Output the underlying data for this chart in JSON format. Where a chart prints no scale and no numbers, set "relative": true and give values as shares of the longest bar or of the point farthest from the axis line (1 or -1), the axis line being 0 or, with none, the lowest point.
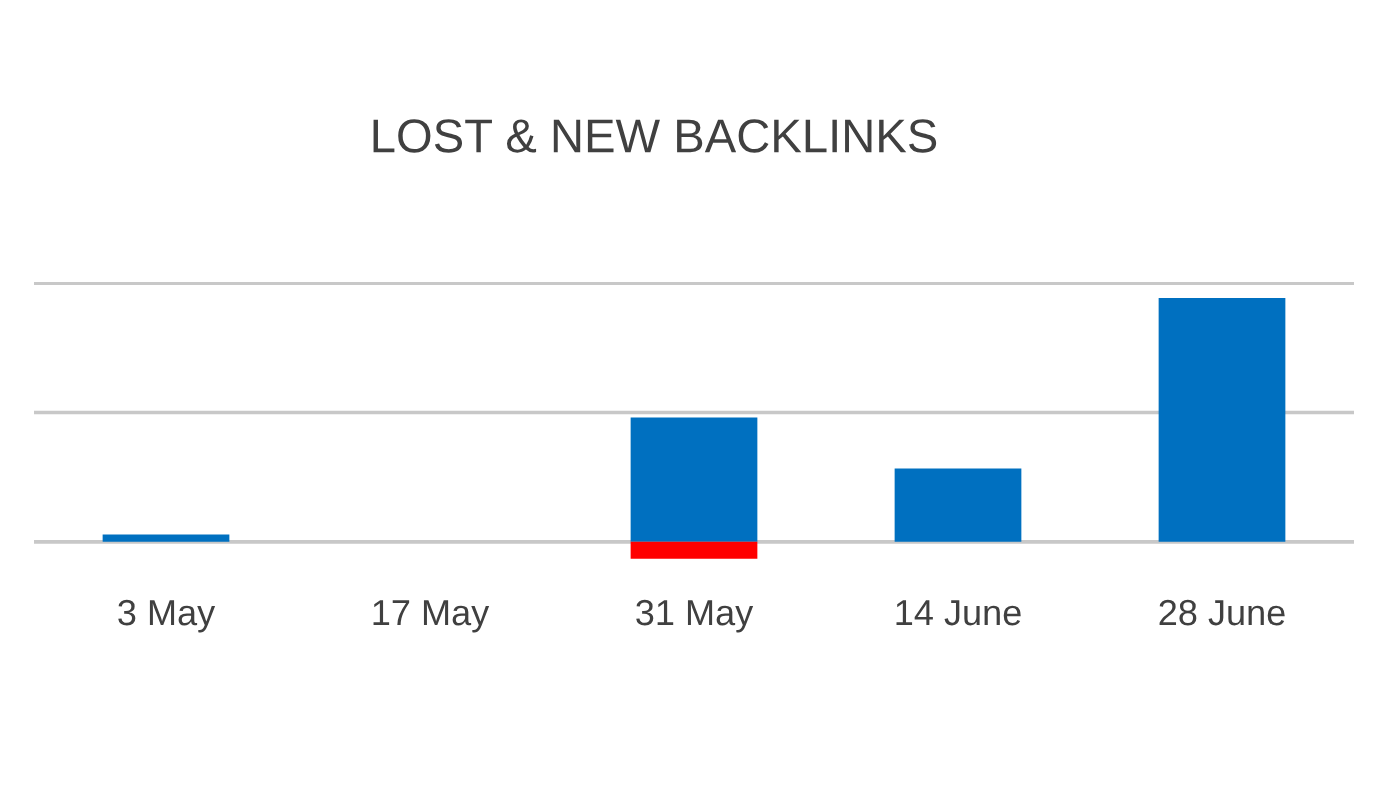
{
  "chart_data": {
    "type": "bar",
    "title": "LOST & NEW BACKLINKS",
    "relative": true,
    "grid": "y",
    "legend": false,
    "categories": [
      "3 May",
      "17 May",
      "31 May",
      "14 June",
      "28 June"
    ],
    "series": [
      {
        "color": "#0070c0",
        "values": [
          0.03,
          0,
          0.51,
          0.3,
          1
        ]
      },
      {
        "color": "#ff0000",
        "values": [
          null,
          null,
          -0.07,
          null,
          null
        ]
      }
    ]
  }
}
